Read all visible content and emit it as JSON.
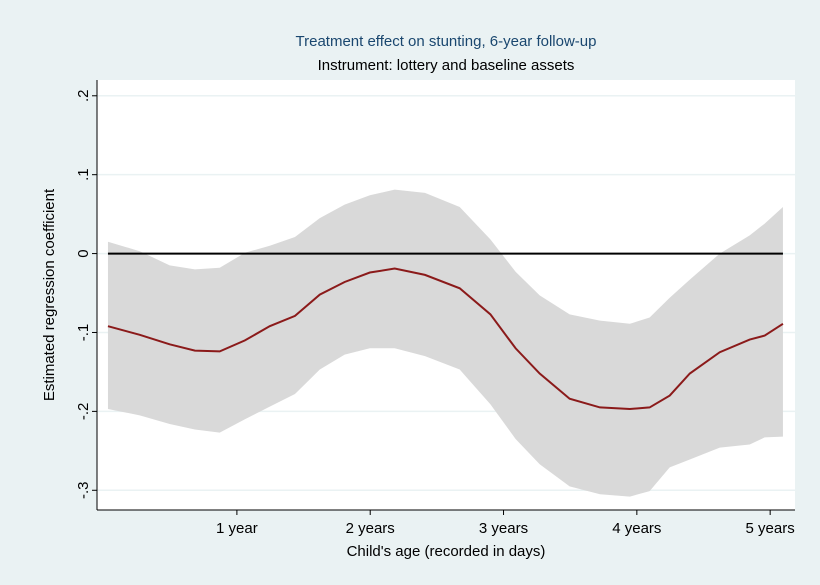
{
  "chart_data": {
    "type": "line",
    "title": "Treatment effect on stunting, 6-year follow-up",
    "subtitle": "Instrument: lottery and baseline assets",
    "xlabel": "Child's age (recorded in days)",
    "ylabel": "Estimated regression coefficient",
    "x": [
      12,
      99,
      181,
      250,
      318,
      387,
      455,
      524,
      592,
      660,
      729,
      797,
      880,
      975,
      1059,
      1128,
      1194,
      1276,
      1359,
      1441,
      1495,
      1550,
      1605,
      1687,
      1769,
      1810,
      1860
    ],
    "series": [
      {
        "color": "#8b1a1a",
        "values": [
          -0.092,
          -0.103,
          -0.115,
          -0.123,
          -0.124,
          -0.11,
          -0.092,
          -0.079,
          -0.052,
          -0.036,
          -0.024,
          -0.019,
          -0.027,
          -0.044,
          -0.077,
          -0.12,
          -0.152,
          -0.184,
          -0.195,
          -0.197,
          -0.195,
          -0.18,
          -0.152,
          -0.125,
          -0.109,
          -0.104,
          -0.089
        ]
      }
    ],
    "band": {
      "color": "#d9d9d9",
      "lower": [
        -0.197,
        -0.205,
        -0.216,
        -0.223,
        -0.227,
        -0.21,
        -0.194,
        -0.178,
        -0.147,
        -0.128,
        -0.12,
        -0.12,
        -0.13,
        -0.147,
        -0.191,
        -0.235,
        -0.267,
        -0.295,
        -0.305,
        -0.308,
        -0.301,
        -0.271,
        -0.261,
        -0.246,
        -0.242,
        -0.233,
        -0.232
      ],
      "upper": [
        0.015,
        0.003,
        -0.015,
        -0.02,
        -0.018,
        0.001,
        0.01,
        0.021,
        0.045,
        0.062,
        0.074,
        0.081,
        0.077,
        0.059,
        0.018,
        -0.023,
        -0.053,
        -0.077,
        -0.085,
        -0.089,
        -0.081,
        -0.056,
        -0.033,
        0.0,
        0.023,
        0.038,
        0.059
      ]
    },
    "yline": 0,
    "xlim": [
      -18,
      1893
    ],
    "ylim": [
      -0.325,
      0.22
    ],
    "xticks": [
      {
        "value": 365,
        "label": "1 year"
      },
      {
        "value": 730,
        "label": "2 years"
      },
      {
        "value": 1095,
        "label": "3 years"
      },
      {
        "value": 1460,
        "label": "4 years"
      },
      {
        "value": 1825,
        "label": "5 years"
      }
    ],
    "yticks": [
      {
        "value": -0.3,
        "label": "-.3"
      },
      {
        "value": -0.2,
        "label": "-.2"
      },
      {
        "value": -0.1,
        "label": "-.1"
      },
      0,
      {
        "value": 0.1,
        "label": ".1"
      },
      {
        "value": 0.2,
        "label": ".2"
      }
    ],
    "grid": true
  }
}
